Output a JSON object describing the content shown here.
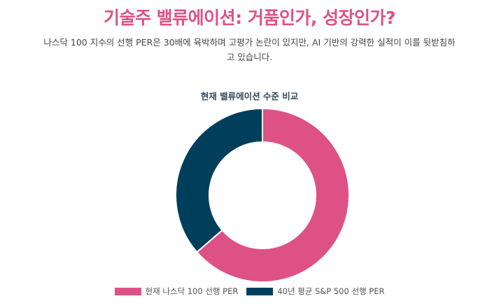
{
  "page": {
    "headline": "기술주 밸류에이션: 거품인가, 성장인가?",
    "subtitle": "나스닥 100 지수의 선행 PER은 30배에 육박하며 고평가 논란이 있지만, AI 기반의 강력한 실적이 이를 뒷받침하고 있습니다."
  },
  "chart_data": {
    "type": "pie",
    "title": "현재 밸류에이션 수준 비교",
    "categories": [
      "현재 나스닥 100 선행 PER",
      "40년 평균 S&P 500 선행 PER"
    ],
    "values": [
      28,
      16
    ],
    "colors": [
      "#de5185",
      "#003f5c"
    ],
    "legend_position": "bottom"
  }
}
